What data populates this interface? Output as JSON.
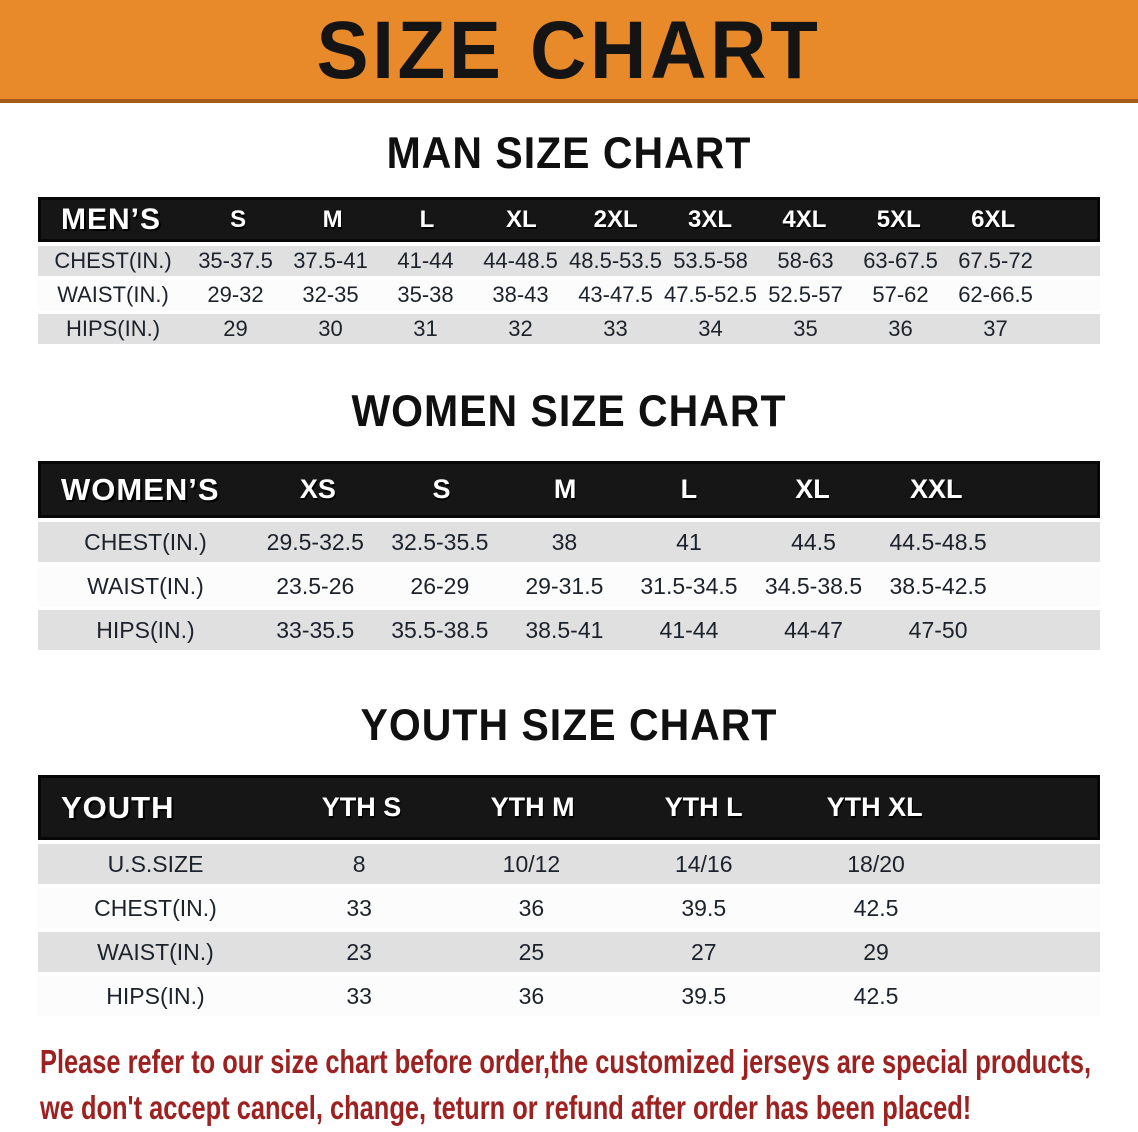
{
  "banner": {
    "title": "SIZE CHART"
  },
  "colors": {
    "banner_orange": "#E8892A",
    "banner_border": "#A35B15",
    "header_bar_black": "#161616",
    "row_gray": "#E0E0E0",
    "row_white": "#FCFCFC",
    "disclaimer_red": "#9E2121"
  },
  "sections": [
    {
      "title": "MAN SIZE CHART",
      "header_label": "MEN’S",
      "columns": [
        "S",
        "M",
        "L",
        "XL",
        "2XL",
        "3XL",
        "4XL",
        "5XL",
        "6XL"
      ],
      "rows": [
        {
          "label": "CHEST(IN.)",
          "values": [
            "35-37.5",
            "37.5-41",
            "41-44",
            "44-48.5",
            "48.5-53.5",
            "53.5-58",
            "58-63",
            "63-67.5",
            "67.5-72"
          ]
        },
        {
          "label": "WAIST(IN.)",
          "values": [
            "29-32",
            "32-35",
            "35-38",
            "38-43",
            "43-47.5",
            "47.5-52.5",
            "52.5-57",
            "57-62",
            "62-66.5"
          ]
        },
        {
          "label": "HIPS(IN.)",
          "values": [
            "29",
            "30",
            "31",
            "32",
            "33",
            "34",
            "35",
            "36",
            "37"
          ]
        }
      ]
    },
    {
      "title": "WOMEN SIZE CHART",
      "header_label": "WOMEN’S",
      "columns": [
        "XS",
        "S",
        "M",
        "L",
        "XL",
        "XXL"
      ],
      "rows": [
        {
          "label": "CHEST(IN.)",
          "values": [
            "29.5-32.5",
            "32.5-35.5",
            "38",
            "41",
            "44.5",
            "44.5-48.5"
          ]
        },
        {
          "label": "WAIST(IN.)",
          "values": [
            "23.5-26",
            "26-29",
            "29-31.5",
            "31.5-34.5",
            "34.5-38.5",
            "38.5-42.5"
          ]
        },
        {
          "label": "HIPS(IN.)",
          "values": [
            "33-35.5",
            "35.5-38.5",
            "38.5-41",
            "41-44",
            "44-47",
            "47-50"
          ]
        }
      ]
    },
    {
      "title": "YOUTH SIZE CHART",
      "header_label": "YOUTH",
      "columns": [
        "YTH S",
        "YTH M",
        "YTH L",
        "YTH XL"
      ],
      "rows": [
        {
          "label": "U.S.SIZE",
          "values": [
            "8",
            "10/12",
            "14/16",
            "18/20"
          ]
        },
        {
          "label": "CHEST(IN.)",
          "values": [
            "33",
            "36",
            "39.5",
            "42.5"
          ]
        },
        {
          "label": "WAIST(IN.)",
          "values": [
            "23",
            "25",
            "27",
            "29"
          ]
        },
        {
          "label": "HIPS(IN.)",
          "values": [
            "33",
            "36",
            "39.5",
            "42.5"
          ]
        }
      ]
    }
  ],
  "footer": {
    "lines": [
      "Please refer to our size chart before order,the customized jerseys are special products,",
      "we don't accept cancel, change, teturn or refund after order has been placed!"
    ]
  }
}
